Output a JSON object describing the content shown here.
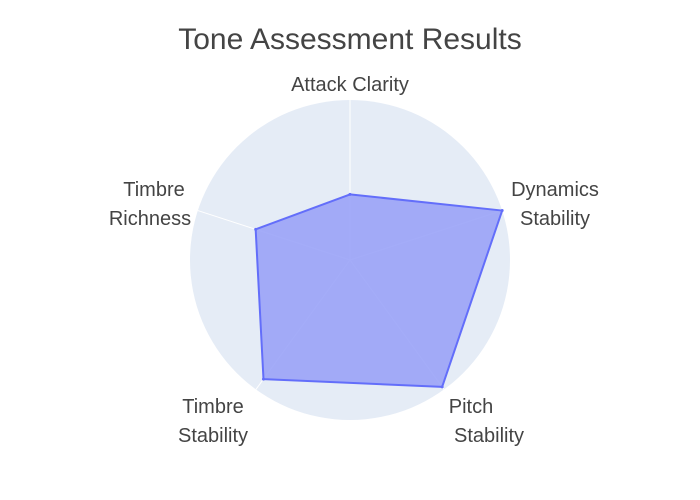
{
  "chart_data": {
    "type": "radar",
    "title": "Tone Assessment Results",
    "axes": [
      {
        "label": "Attack Clarity",
        "lines": [
          "Attack Clarity"
        ]
      },
      {
        "label": "Dynamics Stability",
        "lines": [
          "Dynamics",
          "Stability"
        ]
      },
      {
        "label": "Pitch Stability",
        "lines": [
          "Pitch",
          "Stability"
        ]
      },
      {
        "label": "Timbre Stability",
        "lines": [
          "Timbre",
          "Stability"
        ]
      },
      {
        "label": "Timbre Richness",
        "lines": [
          "Timbre",
          "Richness"
        ]
      }
    ],
    "series": [
      {
        "values": [
          0.41,
          1.0,
          0.98,
          0.92,
          0.62
        ]
      }
    ],
    "range": [
      0,
      1
    ],
    "grid": true,
    "colors": {
      "polar_background": "#e5ecf6",
      "grid_line": "#ffffff",
      "series_fill": "#9aa3f7",
      "series_line": "#636efa",
      "title_text": "#444444",
      "label_text": "#444444"
    }
  }
}
